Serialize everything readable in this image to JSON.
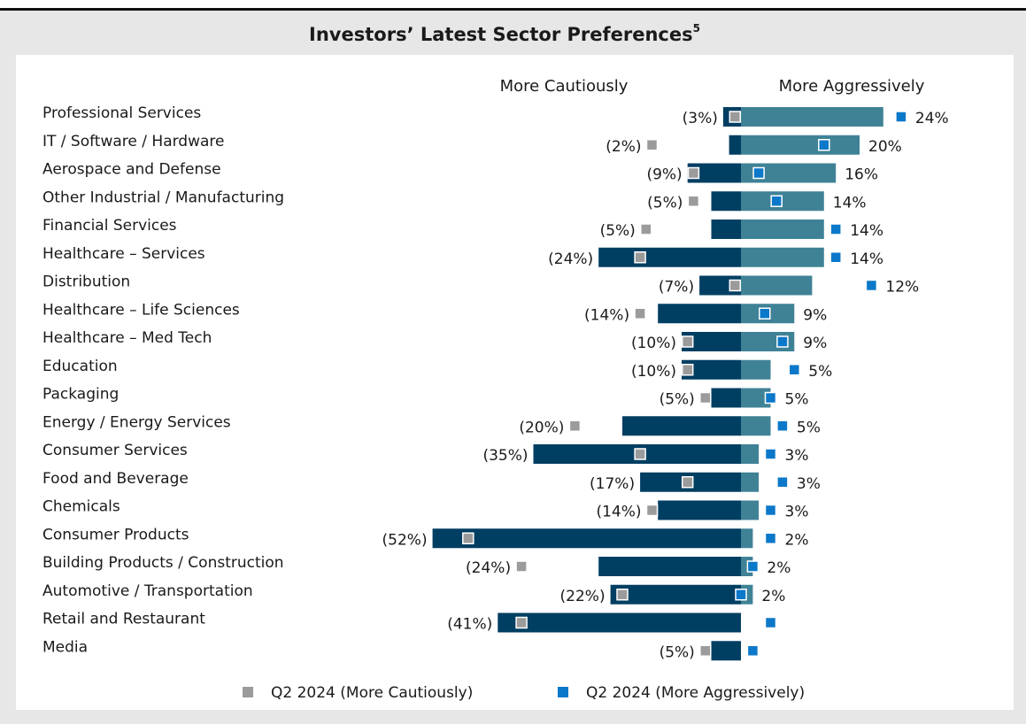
{
  "chart_data": {
    "type": "diverging-bar",
    "title": "Investors’ Latest Sector Preferences",
    "title_note": "5",
    "categories": [
      "Professional Services",
      "IT / Software / Hardware",
      "Aerospace and Defense",
      "Other Industrial / Manufacturing",
      "Financial Services",
      "Healthcare – Services",
      "Distribution",
      "Healthcare – Life Sciences",
      "Healthcare – Med Tech",
      "Education",
      "Packaging",
      "Energy / Energy Services",
      "Consumer Services",
      "Food and Beverage",
      "Chemicals",
      "Consumer Products",
      "Building Products / Construction",
      "Automotive / Transportation",
      "Retail and Restaurant",
      "Media"
    ],
    "series": [
      {
        "name": "More Cautiously",
        "color": "#003e62",
        "values": [
          -3,
          -2,
          -9,
          -5,
          -5,
          -24,
          -7,
          -14,
          -10,
          -10,
          -5,
          -20,
          -35,
          -17,
          -14,
          -52,
          -24,
          -22,
          -41,
          -5
        ],
        "value_labels": [
          "(3%)",
          "(2%)",
          "(9%)",
          "(5%)",
          "(5%)",
          "(24%)",
          "(7%)",
          "(14%)",
          "(10%)",
          "(10%)",
          "(5%)",
          "(20%)",
          "(35%)",
          "(17%)",
          "(14%)",
          "(52%)",
          "(24%)",
          "(22%)",
          "(41%)",
          "(5%)"
        ]
      },
      {
        "name": "More Aggressively",
        "color": "#3f8296",
        "values": [
          24,
          20,
          16,
          14,
          14,
          14,
          12,
          9,
          9,
          5,
          5,
          5,
          3,
          3,
          3,
          2,
          2,
          2,
          null,
          null
        ],
        "value_labels": [
          "24%",
          "20%",
          "16%",
          "14%",
          "14%",
          "14%",
          "12%",
          "9%",
          "9%",
          "5%",
          "5%",
          "5%",
          "3%",
          "3%",
          "3%",
          "2%",
          "2%",
          "2%",
          null,
          null
        ]
      }
    ],
    "markers": [
      {
        "name": "Q2 2024 (More Cautiously)",
        "color": "#9b9b9b",
        "values": [
          -1,
          -15,
          -8,
          -8,
          -16,
          -17,
          -1,
          -17,
          -9,
          -9,
          -6,
          -28,
          -17,
          -9,
          -15,
          -46,
          -37,
          -20,
          -37,
          -6
        ]
      },
      {
        "name": "Q2 2024 (More Aggressively)",
        "color": "#0b78c9",
        "values": [
          27,
          14,
          3,
          6,
          16,
          16,
          22,
          4,
          7,
          9,
          5,
          7,
          5,
          7,
          5,
          5,
          2,
          0,
          5,
          2
        ]
      }
    ]
  }
}
